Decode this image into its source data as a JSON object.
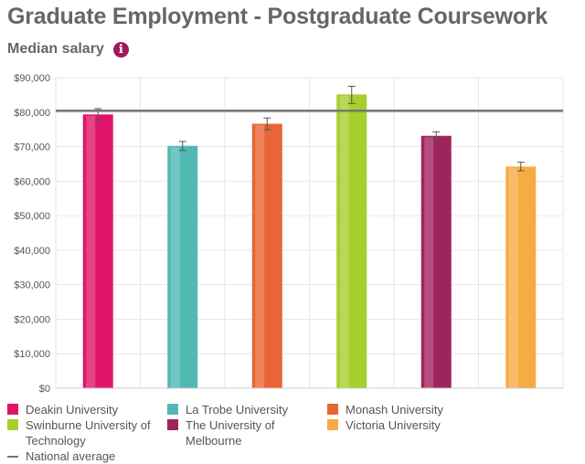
{
  "title": "Graduate Employment - Postgraduate Coursework",
  "subtitle": "Median salary",
  "info_icon": "i",
  "chart_data": {
    "type": "bar",
    "title": "Median salary",
    "categories": [
      "Deakin University",
      "La Trobe University",
      "Monash University",
      "Swinburne University of Technology",
      "The University of Melbourne",
      "Victoria University"
    ],
    "values": [
      79200,
      70100,
      76500,
      85000,
      73000,
      64100
    ],
    "error_low": [
      77300,
      68900,
      74900,
      82500,
      72000,
      63000
    ],
    "error_high": [
      81000,
      71500,
      78300,
      87500,
      74300,
      65500
    ],
    "colors": [
      "#e0156a",
      "#52b8b4",
      "#ea6536",
      "#a5cf2d",
      "#a0245c",
      "#f7ab45"
    ],
    "reference_line": {
      "name": "National average",
      "value": 80400,
      "color": "#777777"
    },
    "ylim": [
      0,
      90000
    ],
    "yticks": [
      "$0",
      "$10,000",
      "$20,000",
      "$30,000",
      "$40,000",
      "$50,000",
      "$60,000",
      "$70,000",
      "$80,000",
      "$90,000"
    ],
    "grid": true,
    "legend_position": "bottom"
  },
  "legend": [
    {
      "label": "Deakin University"
    },
    {
      "label": "La Trobe University"
    },
    {
      "label": "Monash University"
    },
    {
      "label": "Swinburne University of Technology"
    },
    {
      "label": "The University of Melbourne"
    },
    {
      "label": "Victoria University"
    },
    {
      "label": "National average"
    }
  ]
}
